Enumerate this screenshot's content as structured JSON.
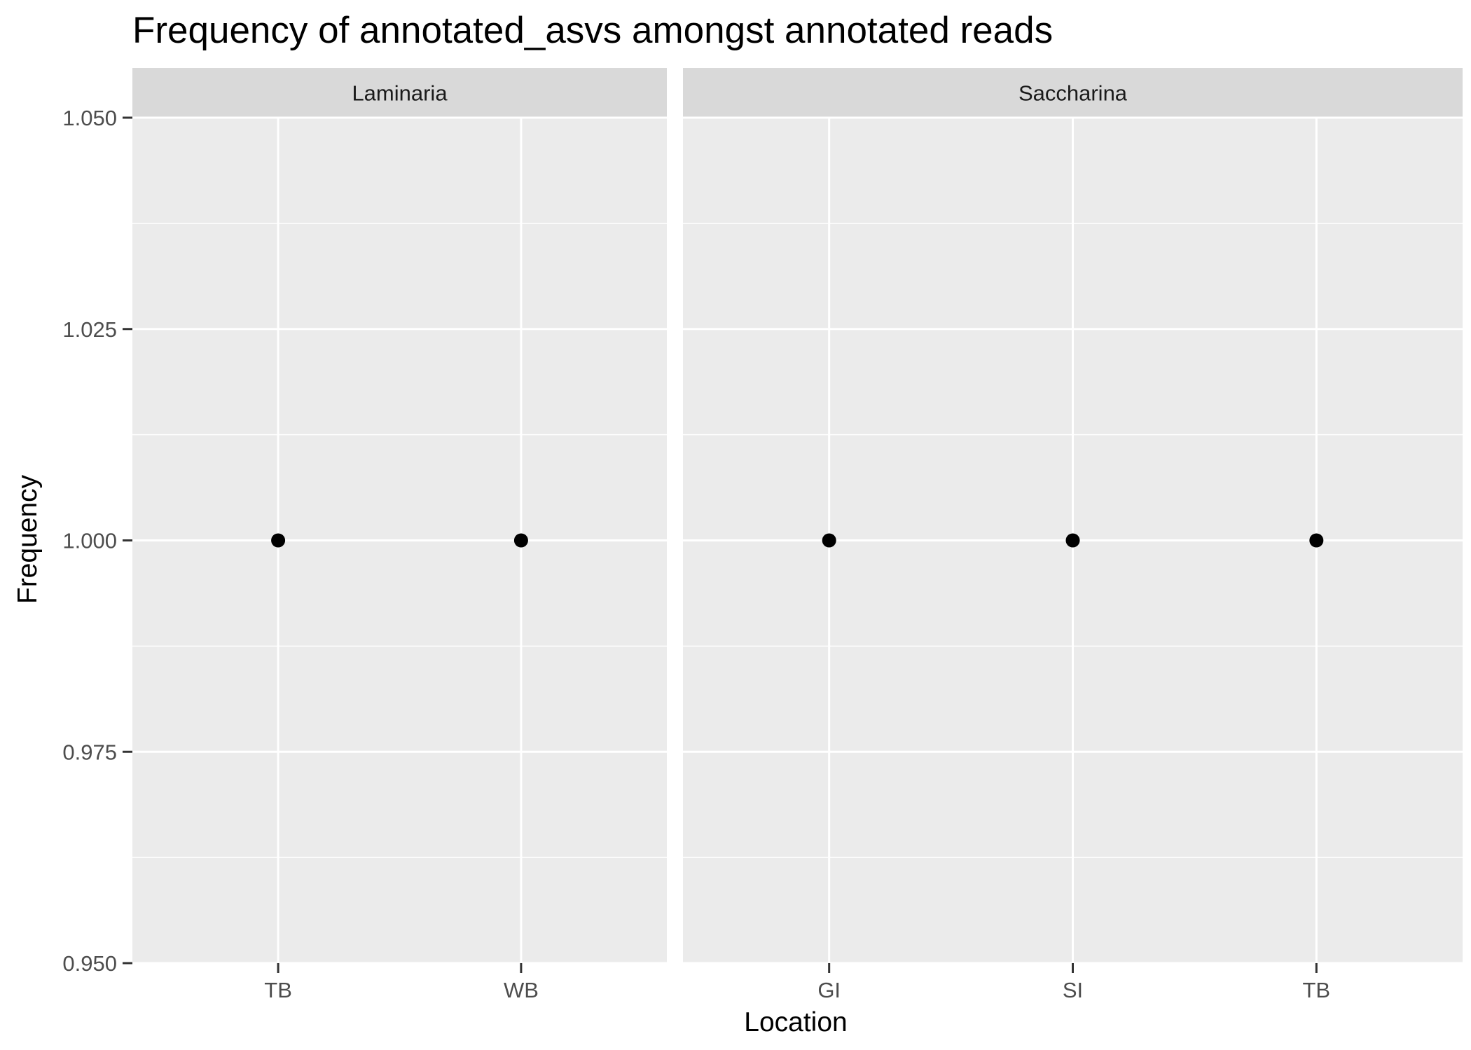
{
  "chart_data": {
    "type": "scatter",
    "title": "Frequency of annotated_asvs amongst annotated reads",
    "xlabel": "Location",
    "ylabel": "Frequency",
    "ylim": [
      0.95,
      1.05
    ],
    "yticks": [
      "0.950",
      "0.975",
      "1.000",
      "1.025",
      "1.050"
    ],
    "ytick_values": [
      0.95,
      0.975,
      1.0,
      1.025,
      1.05
    ],
    "grid": true,
    "legend": "none",
    "colors": {
      "panel_background": "#ebebeb",
      "strip_background": "#d9d9d9",
      "grid": "#ffffff",
      "point": "#000000",
      "tick": "#333333"
    },
    "facets": [
      {
        "name": "Laminaria",
        "categories": [
          "TB",
          "WB"
        ],
        "values": [
          1.0,
          1.0
        ]
      },
      {
        "name": "Saccharina",
        "categories": [
          "GI",
          "SI",
          "TB"
        ],
        "values": [
          1.0,
          1.0,
          1.0
        ]
      }
    ]
  }
}
